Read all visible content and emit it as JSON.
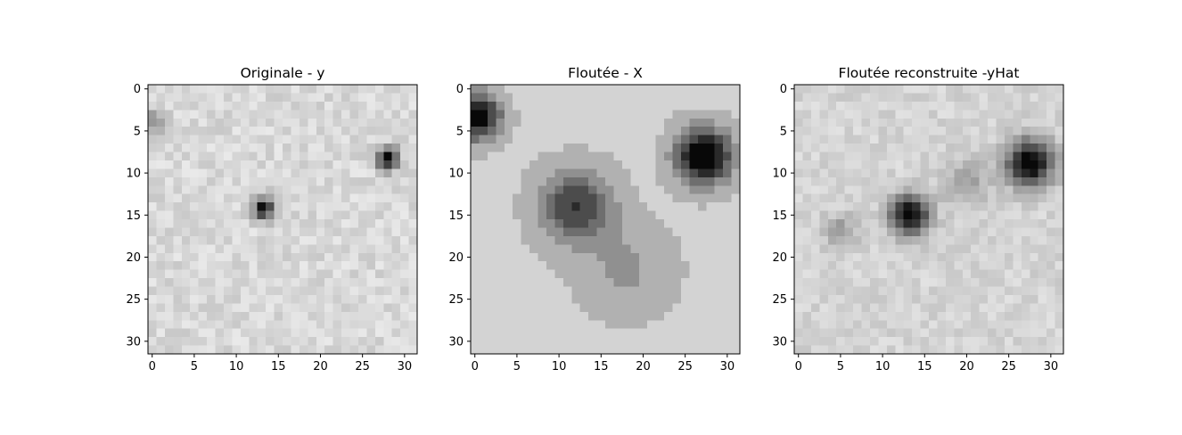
{
  "chart_data": [
    {
      "type": "heatmap",
      "title": "Originale - y",
      "colormap": "gray_r",
      "grid": false,
      "xlim": [
        -0.5,
        31.5
      ],
      "ylim": [
        31.5,
        -0.5
      ],
      "xticks": [
        0,
        5,
        10,
        15,
        20,
        25,
        30
      ],
      "yticks": [
        0,
        5,
        10,
        15,
        20,
        25,
        30
      ],
      "background_level": 0.12,
      "blobs": [
        {
          "x": 28,
          "y": 8.3,
          "sigma": 0.9,
          "amplitude": 0.95
        },
        {
          "x": 13.3,
          "y": 14.2,
          "sigma": 0.9,
          "amplitude": 0.85
        },
        {
          "x": 0.2,
          "y": 3.8,
          "sigma": 1.0,
          "amplitude": 0.35
        }
      ],
      "noise": 0.07
    },
    {
      "type": "heatmap",
      "title": "Floutée - X",
      "colormap": "gray_r",
      "grid": false,
      "xlim": [
        -0.5,
        31.5
      ],
      "ylim": [
        31.5,
        -0.5
      ],
      "xticks": [
        0,
        5,
        10,
        15,
        20,
        25,
        30
      ],
      "yticks": [
        0,
        5,
        10,
        15,
        20,
        25,
        30
      ],
      "background_level": 0.18,
      "quantized_levels": 8,
      "blobs": [
        {
          "x": 27.2,
          "y": 8.0,
          "sigma": 2.3,
          "amplitude": 1.0
        },
        {
          "x": 12.0,
          "y": 14.0,
          "sigma": 3.0,
          "amplitude": 0.62
        },
        {
          "x": 0.3,
          "y": 3.3,
          "sigma": 1.9,
          "amplitude": 0.9
        },
        {
          "x": 18.0,
          "y": 21.5,
          "sigma": 3.8,
          "amplitude": 0.2
        }
      ],
      "noise": 0.0
    },
    {
      "type": "heatmap",
      "title": "Floutée reconstruite -yHat",
      "colormap": "gray_r",
      "grid": false,
      "xlim": [
        -0.5,
        31.5
      ],
      "ylim": [
        31.5,
        -0.5
      ],
      "xticks": [
        0,
        5,
        10,
        15,
        20,
        25,
        30
      ],
      "yticks": [
        0,
        5,
        10,
        15,
        20,
        25,
        30
      ],
      "background_level": 0.14,
      "blobs": [
        {
          "x": 27.5,
          "y": 8.8,
          "sigma": 1.9,
          "amplitude": 0.95
        },
        {
          "x": 13.2,
          "y": 15.0,
          "sigma": 1.6,
          "amplitude": 0.92
        },
        {
          "x": 5.0,
          "y": 17.0,
          "sigma": 1.4,
          "amplitude": 0.25
        },
        {
          "x": 20.0,
          "y": 11.0,
          "sigma": 2.0,
          "amplitude": 0.2
        }
      ],
      "noise": 0.06
    }
  ]
}
